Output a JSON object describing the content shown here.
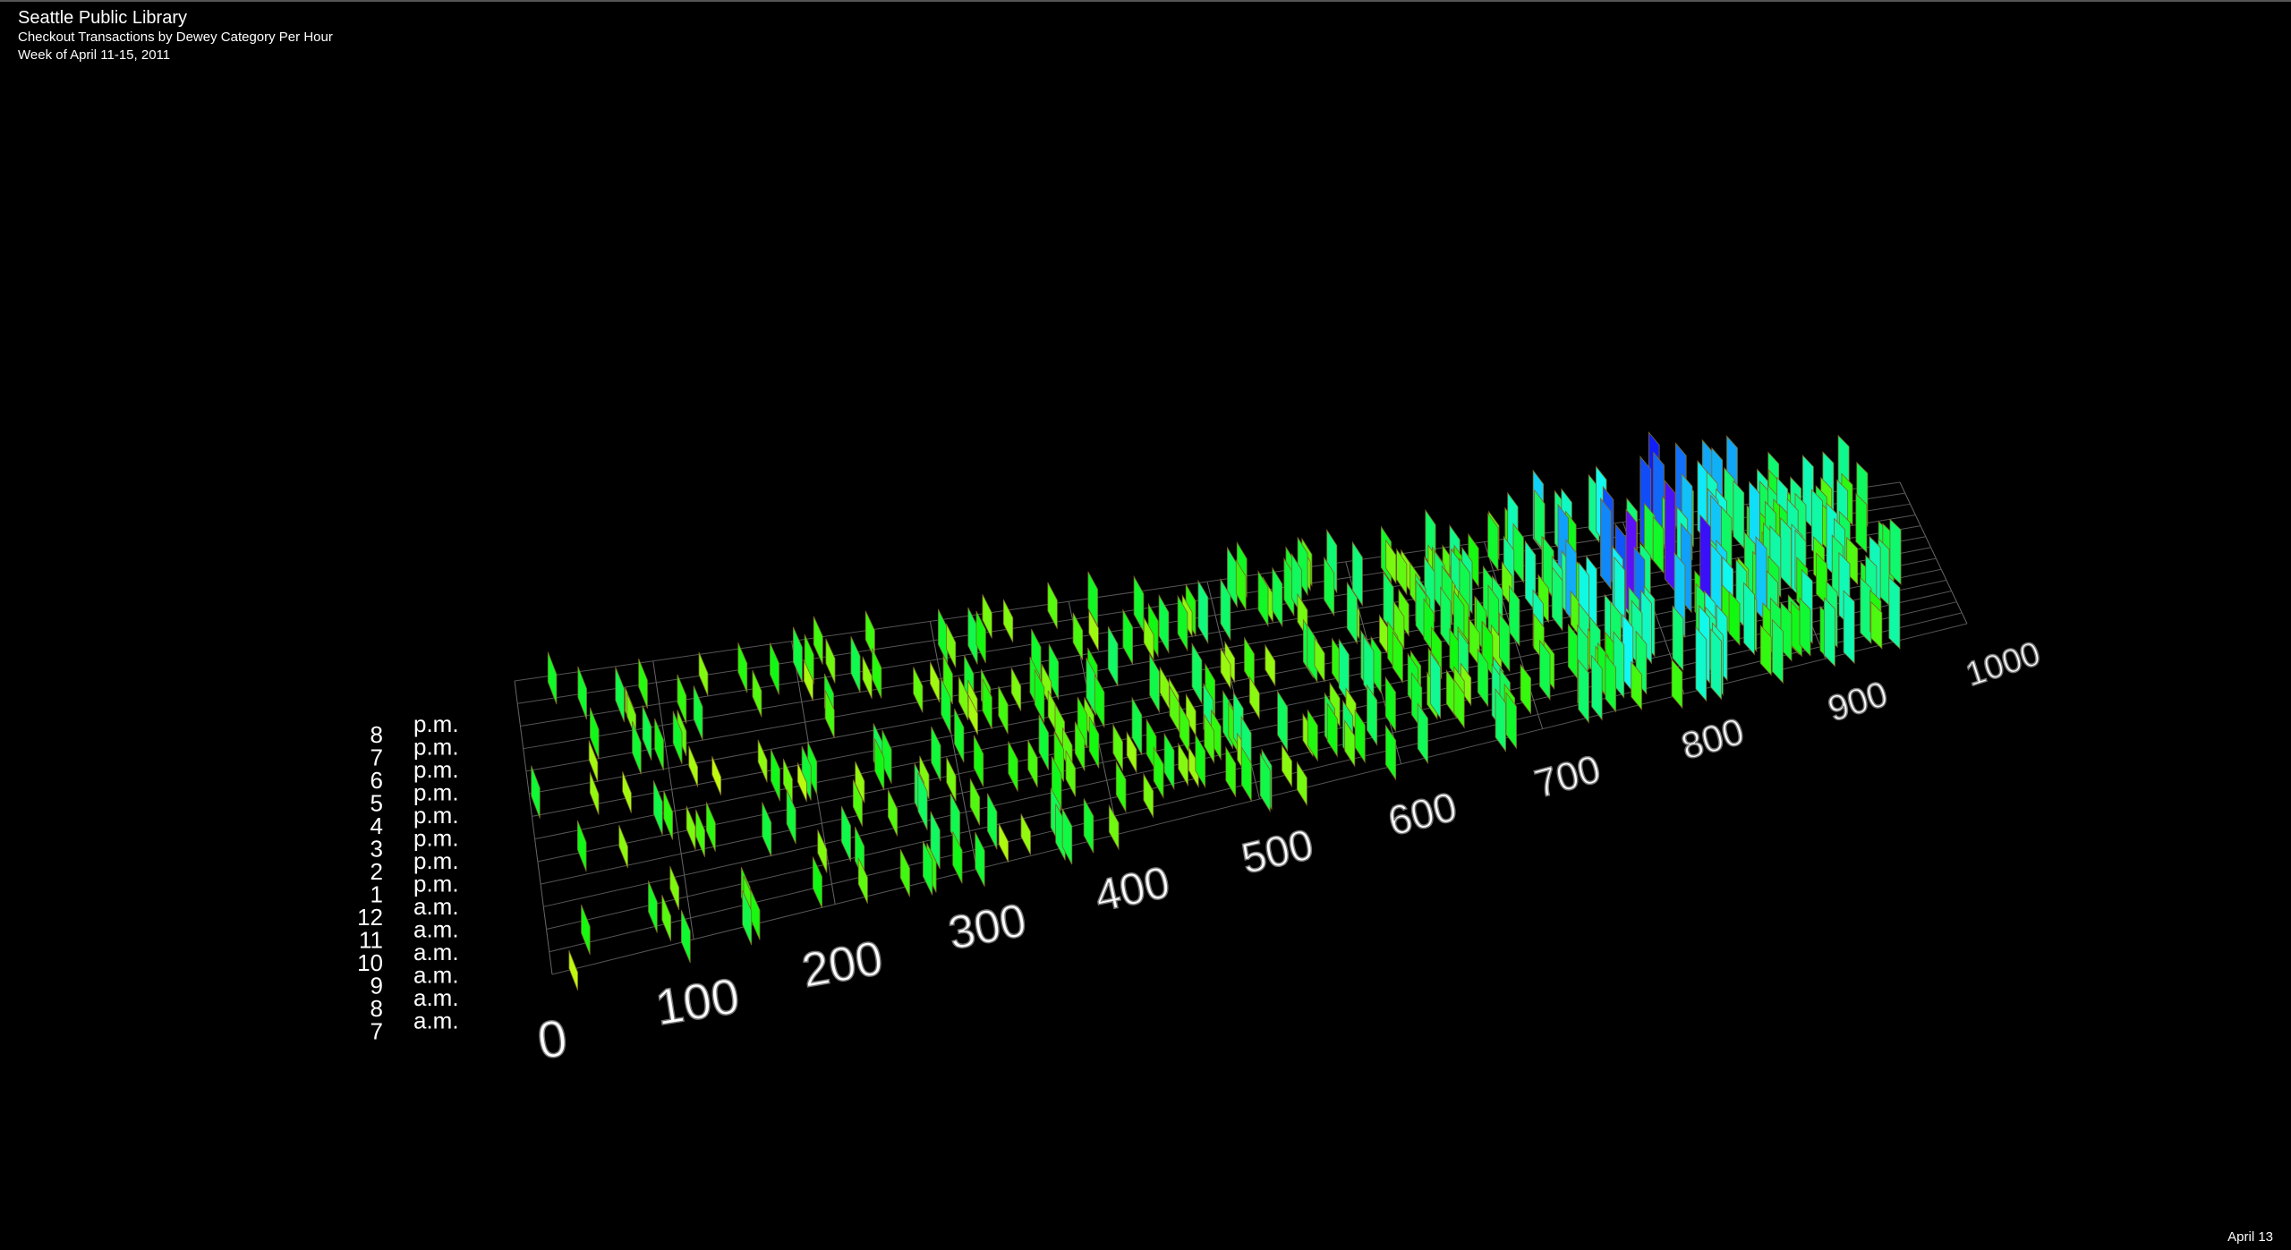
{
  "header": {
    "title": "Seattle Public Library",
    "subtitle": "Checkout Transactions by Dewey Category Per Hour",
    "date_range": "Week of April 11-15, 2011"
  },
  "axes": {
    "dewey_ticks": [
      0,
      100,
      200,
      300,
      400,
      500,
      600,
      700,
      800,
      900,
      1000
    ],
    "hours": [
      {
        "hour": "8",
        "period": "p.m."
      },
      {
        "hour": "7",
        "period": "p.m."
      },
      {
        "hour": "6",
        "period": "p.m."
      },
      {
        "hour": "5",
        "period": "p.m."
      },
      {
        "hour": "4",
        "period": "p.m."
      },
      {
        "hour": "3",
        "period": "p.m."
      },
      {
        "hour": "2",
        "period": "p.m."
      },
      {
        "hour": "1",
        "period": "p.m."
      },
      {
        "hour": "12",
        "period": "a.m."
      },
      {
        "hour": "11",
        "period": "a.m."
      },
      {
        "hour": "10",
        "period": "a.m."
      },
      {
        "hour": "9",
        "period": "a.m."
      },
      {
        "hour": "8",
        "period": "a.m."
      },
      {
        "hour": "7",
        "period": "a.m."
      }
    ]
  },
  "footer": {
    "date": "April 13"
  }
}
